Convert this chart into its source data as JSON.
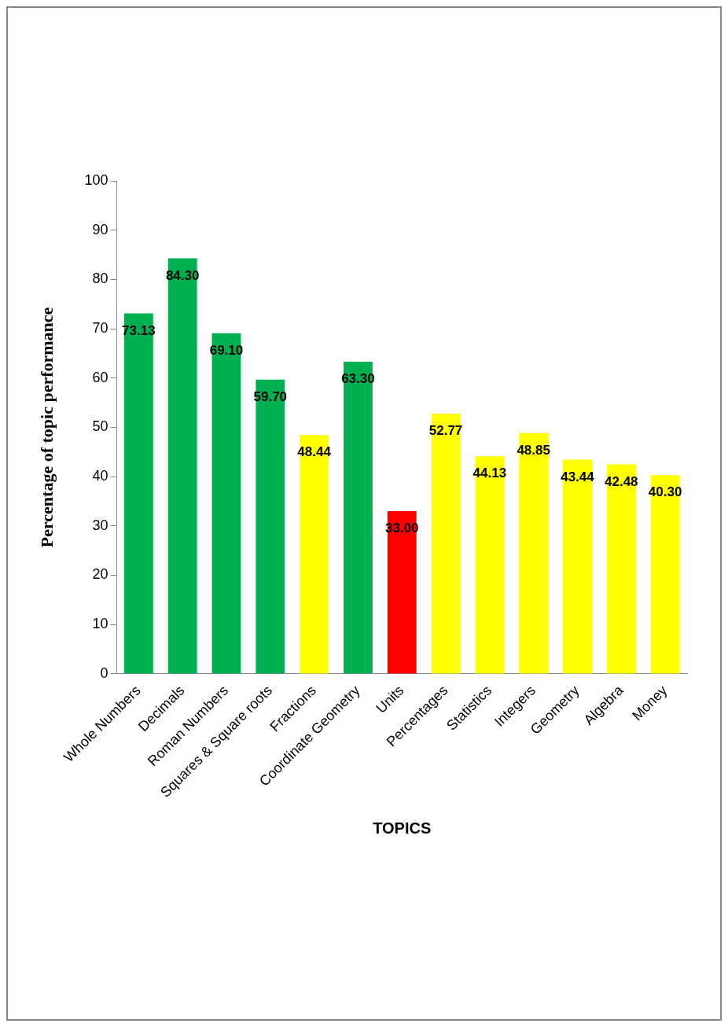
{
  "chart_data": {
    "type": "bar",
    "xlabel": "TOPICS",
    "ylabel": "Percentage of topic performance",
    "categories": [
      "Whole Numbers",
      "Decimals",
      "Roman Numbers",
      "Squares & Square roots",
      "Fractions",
      "Coordinate Geometry",
      "Units",
      "Percentages",
      "Statistics",
      "Integers",
      "Geometry",
      "Algebra",
      "Money"
    ],
    "values": [
      73.13,
      84.3,
      69.1,
      59.7,
      48.44,
      63.3,
      33.0,
      52.77,
      44.13,
      48.85,
      43.44,
      42.48,
      40.3
    ],
    "value_labels": [
      "73.13",
      "84.30",
      "69.10",
      "59.70",
      "48.44",
      "63.30",
      "33.00",
      "52.77",
      "44.13",
      "48.85",
      "43.44",
      "42.48",
      "40.30"
    ],
    "colors": [
      "#00b050",
      "#00b050",
      "#00b050",
      "#00b050",
      "#ffff00",
      "#00b050",
      "#ff0000",
      "#ffff00",
      "#ffff00",
      "#ffff00",
      "#ffff00",
      "#ffff00",
      "#ffff00"
    ],
    "ylim": [
      0,
      100
    ],
    "yticks": [
      0,
      10,
      20,
      30,
      40,
      50,
      60,
      70,
      80,
      90,
      100
    ],
    "grid": false,
    "legend": false
  }
}
